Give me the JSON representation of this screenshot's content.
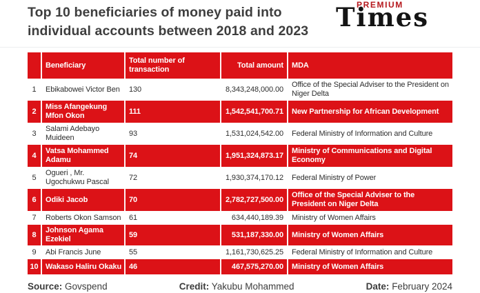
{
  "header": {
    "title": "Top 10 beneficiaries of money paid into individual accounts between 2018 and 2023"
  },
  "logo": {
    "premium": "PREMIUM",
    "times": "Times"
  },
  "colors": {
    "accent_red": "#dc1217",
    "logo_premium_red": "#b5171c",
    "title_gray": "#3e3e3e"
  },
  "chart_data": {
    "type": "table",
    "title": "Top 10 beneficiaries of money paid into individual accounts between 2018 and 2023",
    "columns": [
      "",
      "Beneficiary",
      "Total number of transaction",
      "Total amount",
      "MDA"
    ],
    "highlight_pattern": "every even rank row highlighted red",
    "rows": [
      {
        "rank": "1",
        "beneficiary": "Ebikabowei Victor Ben",
        "transactions": "130",
        "amount": "8,343,248,000.00",
        "mda": "Office of the Special Adviser to the President on Niger Delta"
      },
      {
        "rank": "2",
        "beneficiary": "Miss Afangekung Mfon Okon",
        "transactions": "111",
        "amount": "1,542,541,700.71",
        "mda": "New Partnership for African Development"
      },
      {
        "rank": "3",
        "beneficiary": "Salami Adebayo Muideen",
        "transactions": "93",
        "amount": "1,531,024,542.00",
        "mda": "Federal Ministry of Information and Culture"
      },
      {
        "rank": "4",
        "beneficiary": "Vatsa Mohammed Adamu",
        "transactions": "74",
        "amount": "1,951,324,873.17",
        "mda": "Ministry of Communications and Digital Economy"
      },
      {
        "rank": "5",
        "beneficiary": "Ogueri , Mr. Ugochukwu Pascal",
        "transactions": "72",
        "amount": "1,930,374,170.12",
        "mda": "Federal Ministry of Power"
      },
      {
        "rank": "6",
        "beneficiary": "Odiki Jacob",
        "transactions": "70",
        "amount": "2,782,727,500.00",
        "mda": "Office of the Special Adviser to the President on Niger Delta"
      },
      {
        "rank": "7",
        "beneficiary": "Roberts Okon Samson",
        "transactions": "61",
        "amount": "634,440,189.39",
        "mda": "Ministry of Women Affairs"
      },
      {
        "rank": "8",
        "beneficiary": "Johnson Agama Ezekiel",
        "transactions": "59",
        "amount": "531,187,330.00",
        "mda": "Ministry of Women Affairs"
      },
      {
        "rank": "9",
        "beneficiary": "Abi Francis June",
        "transactions": "55",
        "amount": "1,161,730,625.25",
        "mda": "Federal Ministry of Information and Culture"
      },
      {
        "rank": "10",
        "beneficiary": "Wakaso Haliru Okaku",
        "transactions": "46",
        "amount": "467,575,270.00",
        "mda": "Ministry of Women Affairs"
      }
    ]
  },
  "footer": {
    "source": {
      "label": "Source:",
      "value": "Govspend"
    },
    "credit": {
      "label": "Credit:",
      "value": "Yakubu Mohammed"
    },
    "date": {
      "label": "Date:",
      "value": "February 2024"
    }
  }
}
